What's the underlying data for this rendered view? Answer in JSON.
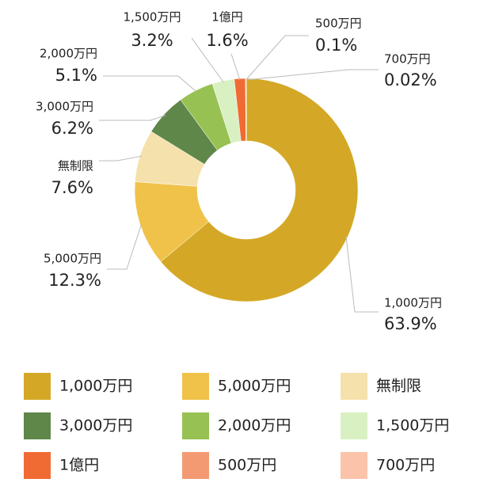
{
  "chart_data": {
    "type": "donut",
    "categories": [
      "1,000万円",
      "5,000万円",
      "無制限",
      "3,000万円",
      "2,000万円",
      "1,500万円",
      "1億円",
      "500万円",
      "700万円"
    ],
    "values": [
      63.9,
      12.3,
      7.6,
      6.2,
      5.1,
      3.2,
      1.6,
      0.1,
      0.02
    ],
    "value_labels": [
      "63.9%",
      "12.3%",
      "7.6%",
      "6.2%",
      "5.1%",
      "3.2%",
      "1.6%",
      "0.1%",
      "0.02%"
    ],
    "colors": [
      "#d4a826",
      "#f0c24a",
      "#f5e1ab",
      "#5f8749",
      "#98c153",
      "#d9f1c2",
      "#f06b33",
      "#f49a72",
      "#fbc4aa"
    ],
    "legend": true
  }
}
